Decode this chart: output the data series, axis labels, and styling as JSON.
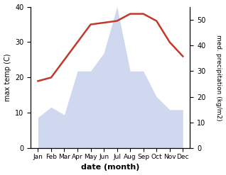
{
  "months": [
    "Jan",
    "Feb",
    "Mar",
    "Apr",
    "May",
    "Jun",
    "Jul",
    "Aug",
    "Sep",
    "Oct",
    "Nov",
    "Dec"
  ],
  "temp": [
    19,
    20,
    25,
    30,
    35,
    35.5,
    36,
    38,
    38,
    36,
    30,
    26
  ],
  "precip": [
    12,
    16,
    13,
    30,
    30,
    37,
    55,
    30,
    30,
    20,
    15,
    15
  ],
  "temp_color": "#c0392b",
  "precip_fill_color": "#b8c4e8",
  "ylabel_left": "max temp (C)",
  "ylabel_right": "med. precipitation (kg/m2)",
  "xlabel": "date (month)",
  "ylim_left": [
    0,
    40
  ],
  "ylim_right": [
    0,
    55
  ],
  "yticks_left": [
    0,
    10,
    20,
    30,
    40
  ],
  "yticks_right": [
    0,
    10,
    20,
    30,
    40,
    50
  ],
  "background_color": "#ffffff",
  "fig_width": 3.18,
  "fig_height": 2.47,
  "dpi": 100
}
